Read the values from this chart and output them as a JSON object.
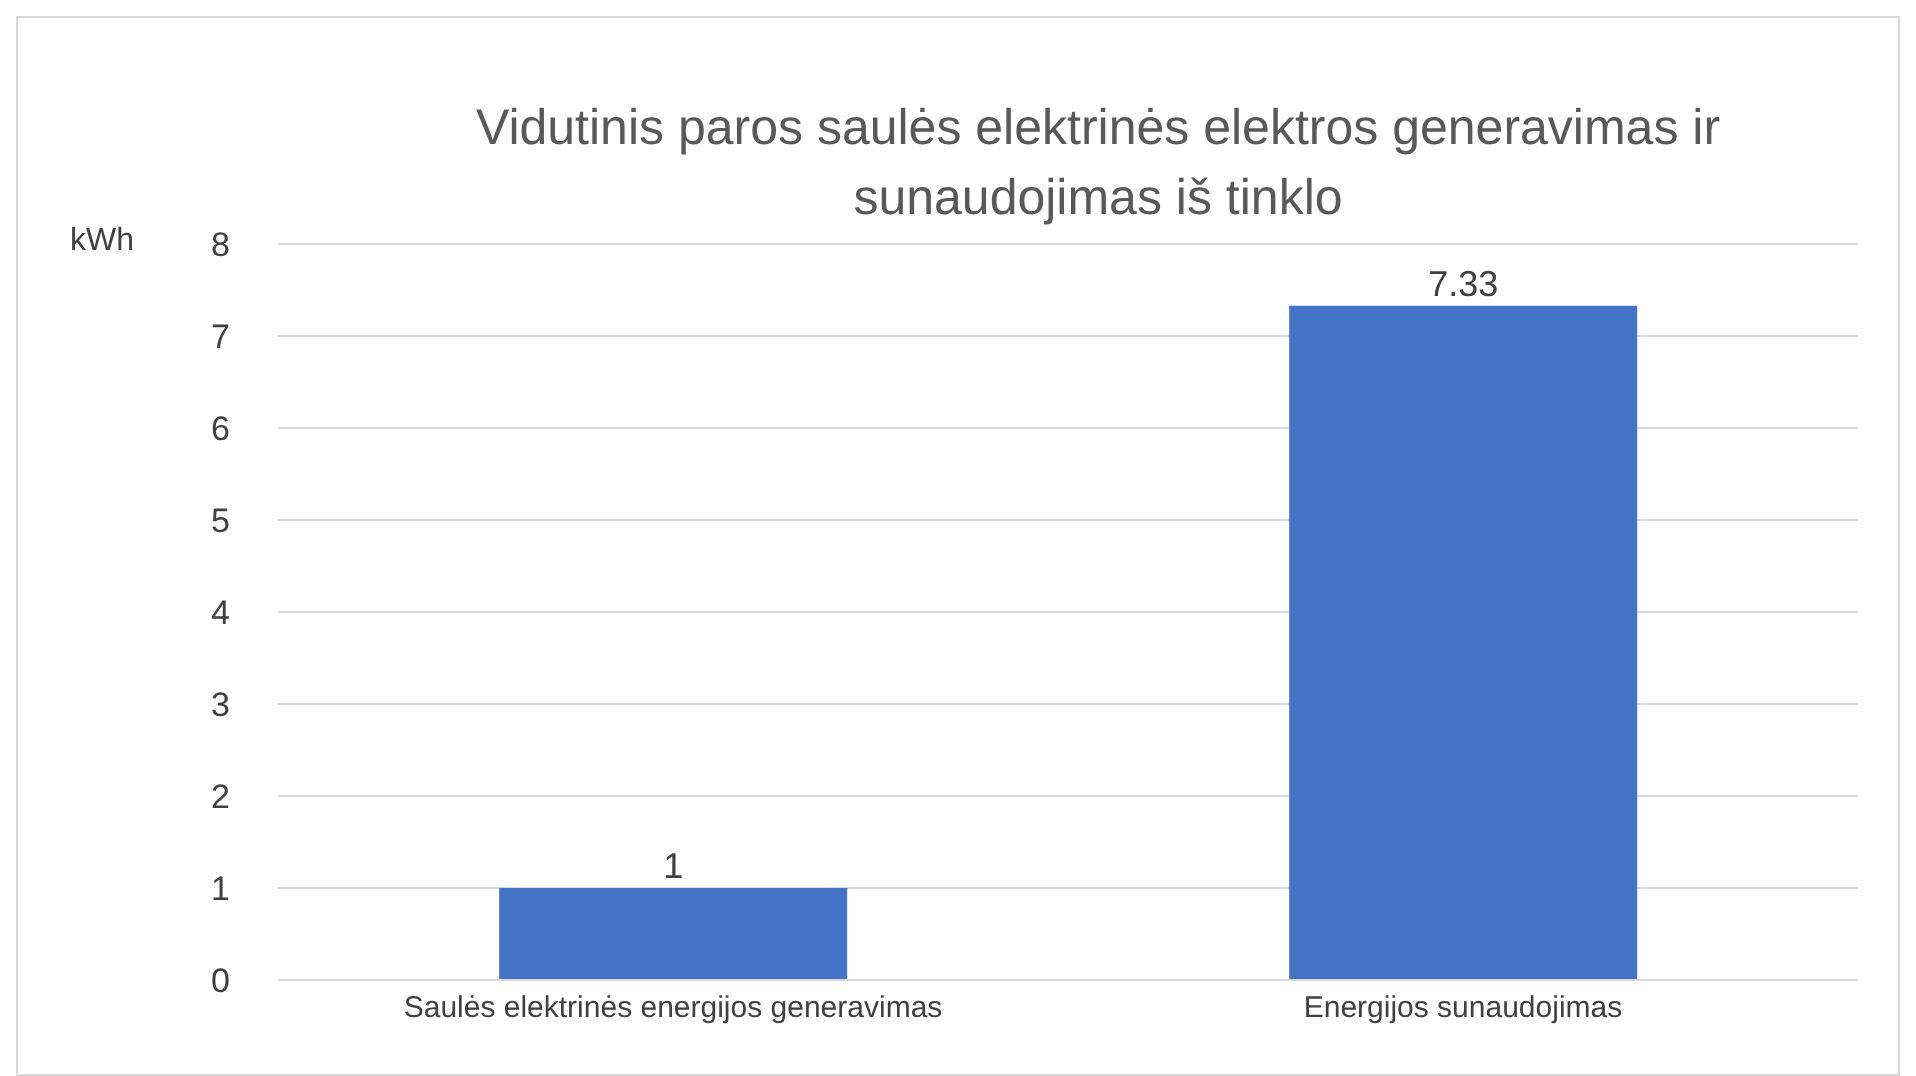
{
  "chart_data": {
    "type": "bar",
    "title": "Vidutinis paros saulės elektrinės elektros generavimas ir sunaudojimas iš tinklo",
    "ylabel": "kWh",
    "categories": [
      "Saulės elektrinės energijos generavimas",
      "Energijos sunaudojimas"
    ],
    "values": [
      1,
      7.33
    ],
    "color": "#4472c4",
    "ylim": [
      0,
      8
    ],
    "yticks": [
      0,
      1,
      2,
      3,
      4,
      5,
      6,
      7,
      8
    ],
    "grid": "y",
    "data_labels": true
  }
}
